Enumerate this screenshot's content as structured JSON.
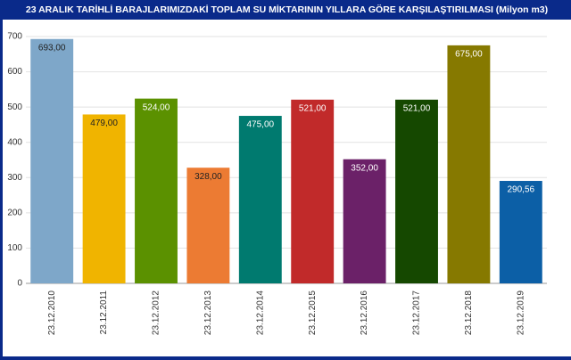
{
  "chart_data": {
    "type": "bar",
    "title": "23 ARALIK TARİHLİ BARAJLARIMIZDAKİ TOPLAM SU MİKTARININ YILLARA GÖRE KARŞILAŞTIRILMASI (Milyon m3)",
    "categories": [
      "23.12.2010",
      "23.12.2011",
      "23.12.2012",
      "23.12.2013",
      "23.12.2014",
      "23.12.2015",
      "23.12.2016",
      "23.12.2017",
      "23.12.2018",
      "23.12.2019"
    ],
    "values": [
      693,
      479,
      524,
      328,
      475,
      521,
      352,
      521,
      675,
      290.56
    ],
    "value_labels": [
      "693,00",
      "479,00",
      "524,00",
      "328,00",
      "475,00",
      "521,00",
      "352,00",
      "521,00",
      "675,00",
      "290,56"
    ],
    "colors": [
      "#7ea7c9",
      "#f0b400",
      "#5b9100",
      "#ec7b33",
      "#007a6f",
      "#c12a2a",
      "#6b2168",
      "#154800",
      "#867900",
      "#0c5fa6"
    ],
    "ylim": [
      0,
      700
    ],
    "yticks": [
      0,
      100,
      200,
      300,
      400,
      500,
      600,
      700
    ],
    "grid": true
  }
}
